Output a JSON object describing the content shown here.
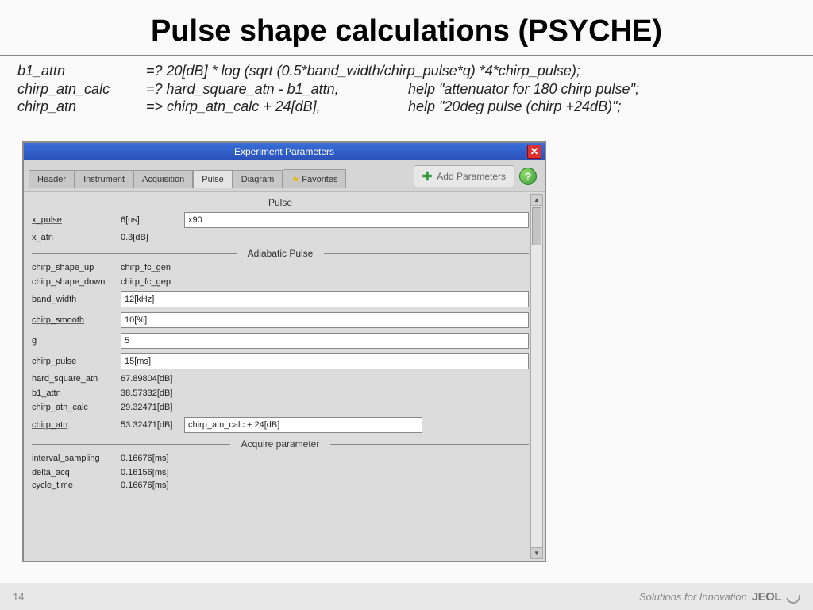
{
  "slide": {
    "title": "Pulse shape calculations (PSYCHE)",
    "page_number": "14",
    "footer_tagline": "Solutions for Innovation",
    "footer_brand": "JEOL"
  },
  "code": {
    "rows": [
      {
        "param": "b1_attn",
        "expr": "=? 20[dB] * log (sqrt (0.5*band_width/chirp_pulse*q) *4*chirp_pulse);",
        "help": ""
      },
      {
        "param": "chirp_atn_calc",
        "expr": "=? hard_square_atn - b1_attn,",
        "help": "help \"attenuator for 180 chirp pulse\";"
      },
      {
        "param": "chirp_atn",
        "expr": "=> chirp_atn_calc + 24[dB],",
        "help": "help \"20deg pulse (chirp +24dB)\";"
      }
    ]
  },
  "window": {
    "title": "Experiment Parameters",
    "add_params_label": "Add Parameters",
    "tabs": [
      "Header",
      "Instrument",
      "Acquisition",
      "Pulse",
      "Diagram",
      "Favorites"
    ],
    "active_tab": 3,
    "sections": {
      "pulse": {
        "title": "Pulse",
        "rows": [
          {
            "label": "x_pulse",
            "underline": true,
            "val": "6[us]",
            "input": "x90"
          },
          {
            "label": "x_atn",
            "underline": false,
            "val": "0.3[dB]",
            "input": null
          }
        ]
      },
      "adiabatic": {
        "title": "Adiabatic Pulse",
        "rows": [
          {
            "label": "chirp_shape_up",
            "underline": false,
            "val": "chirp_fc_gen",
            "input": null
          },
          {
            "label": "chirp_shape_down",
            "underline": false,
            "val": "chirp_fc_gep",
            "input": null
          },
          {
            "label": "band_width",
            "underline": true,
            "val": "",
            "input": "12[kHz]"
          },
          {
            "label": "chirp_smooth",
            "underline": true,
            "val": "",
            "input": "10[%]"
          },
          {
            "label": "g",
            "underline": true,
            "val": "",
            "input": "5"
          },
          {
            "label": "chirp_pulse",
            "underline": true,
            "val": "",
            "input": "15[ms]"
          },
          {
            "label": "hard_square_atn",
            "underline": false,
            "val": "67.89804[dB]",
            "input": null
          },
          {
            "label": "b1_attn",
            "underline": false,
            "val": "38.57332[dB]",
            "input": null
          },
          {
            "label": "chirp_atn_calc",
            "underline": false,
            "val": "29.32471[dB]",
            "input": null
          },
          {
            "label": "chirp_atn",
            "underline": true,
            "val": "53.32471[dB]",
            "input": "chirp_atn_calc + 24[dB]",
            "narrow": true
          }
        ]
      },
      "acquire": {
        "title": "Acquire parameter",
        "rows": [
          {
            "label": "interval_sampling",
            "underline": false,
            "val": "0.16676[ms]",
            "input": null
          },
          {
            "label": "delta_acq",
            "underline": false,
            "val": "0.16156[ms]",
            "input": null
          },
          {
            "label": "cycle_time",
            "underline": false,
            "val": "0.16676[ms]",
            "input": null
          }
        ]
      }
    }
  },
  "colors": {
    "titlebar": "#2a50b8",
    "close": "#e03030",
    "panel_bg": "#dcdcdc",
    "text": "#222222"
  }
}
